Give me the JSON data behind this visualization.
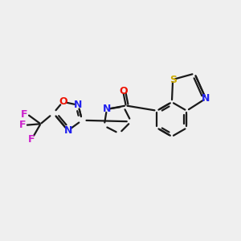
{
  "background_color": "#efefef",
  "bond_color": "#1a1a1a",
  "N_color": "#2222ee",
  "O_color": "#ee1100",
  "S_color": "#ccaa00",
  "F_color": "#cc22cc",
  "bond_width": 1.6,
  "figsize": [
    3.0,
    3.0
  ],
  "dpi": 100,
  "xlim": [
    0,
    10
  ],
  "ylim": [
    0,
    10
  ]
}
